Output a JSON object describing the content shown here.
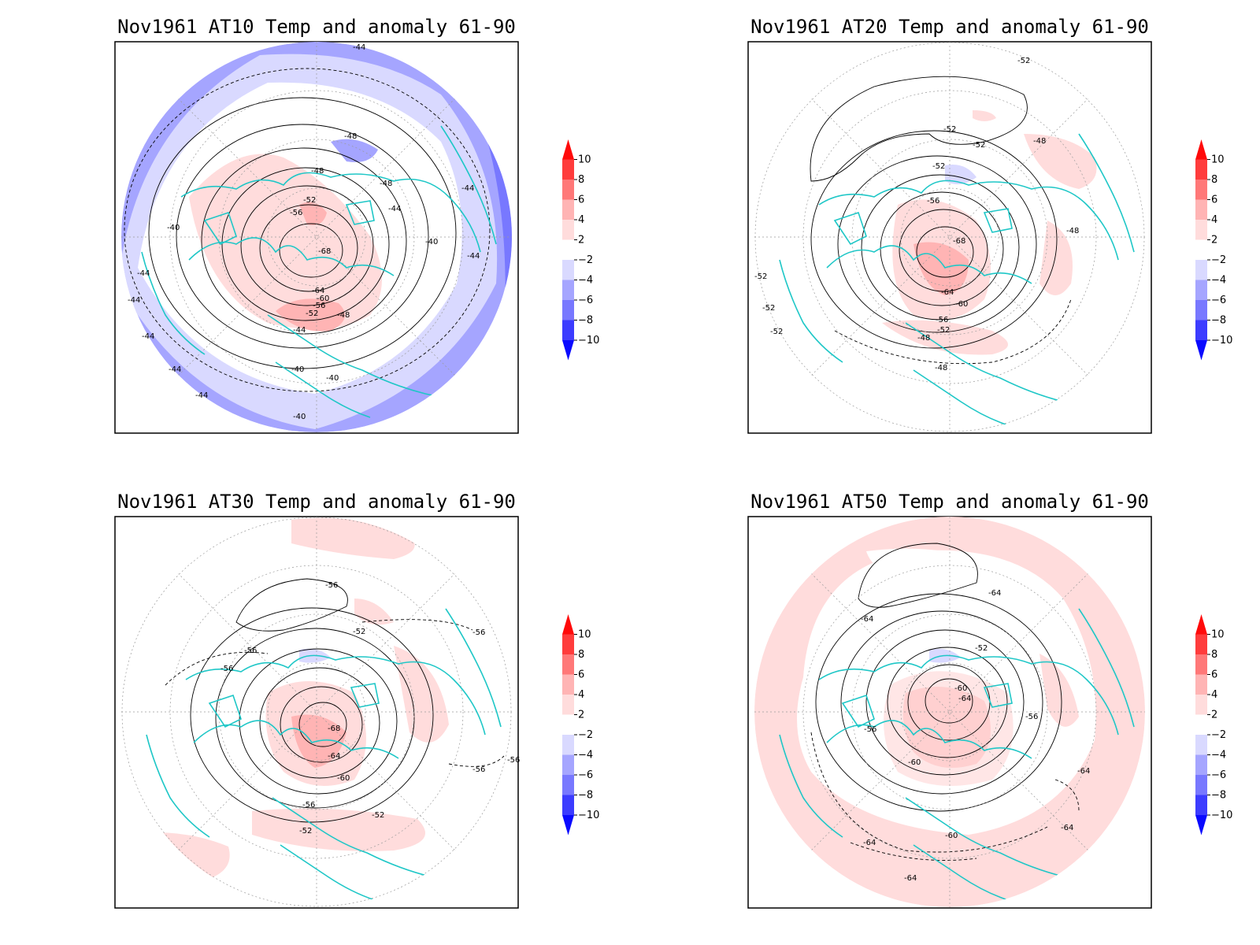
{
  "colors": {
    "coast": "#1fc7c7",
    "contour": "#000000",
    "grid": "#9a9a9a",
    "anomaly_scale": [
      "#0a0aff",
      "#3c3cff",
      "#7878ff",
      "#a5a5ff",
      "#d9d9ff",
      "#ffffff",
      "#ffdcdc",
      "#ffb4b4",
      "#ff7878",
      "#ff3c3c",
      "#ff0a0a"
    ]
  },
  "colorbar": {
    "levels": [
      "10",
      "8",
      "6",
      "4",
      "2",
      "−2",
      "−4",
      "−6",
      "−8",
      "−10"
    ]
  },
  "panels": [
    {
      "title": "Nov1961 AT10 Temp and anomaly 61-90",
      "contour_labels": [
        "-44",
        "-52",
        "-56",
        "-48",
        "-48",
        "-48",
        "-44",
        "-44",
        "-40",
        "-40",
        "-44",
        "-68",
        "-64",
        "-60",
        "-56",
        "-52",
        "-48",
        "-44",
        "-44",
        "-40",
        "-40",
        "-40",
        "-44",
        "-44",
        "-44",
        "-44"
      ]
    },
    {
      "title": "Nov1961 AT20 Temp and anomaly 61-90",
      "contour_labels": [
        "-52",
        "-52",
        "-52",
        "-52",
        "-48",
        "-56",
        "-68",
        "-64",
        "-60",
        "-56",
        "-52",
        "-48",
        "-48",
        "-48",
        "-52",
        "-52",
        "-52"
      ]
    },
    {
      "title": "Nov1961 AT30 Temp and anomaly 61-90",
      "contour_labels": [
        "-56",
        "-56",
        "-52",
        "-56",
        "-56",
        "-68",
        "-64",
        "-60",
        "-56",
        "-52",
        "-52",
        "-56",
        "-56"
      ]
    },
    {
      "title": "Nov1961 AT50 Temp and anomaly 61-90",
      "contour_labels": [
        "-64",
        "-64",
        "-52",
        "-60",
        "-64",
        "-56",
        "-56",
        "-60",
        "-64",
        "-60",
        "-64",
        "-64",
        "-64"
      ]
    }
  ]
}
